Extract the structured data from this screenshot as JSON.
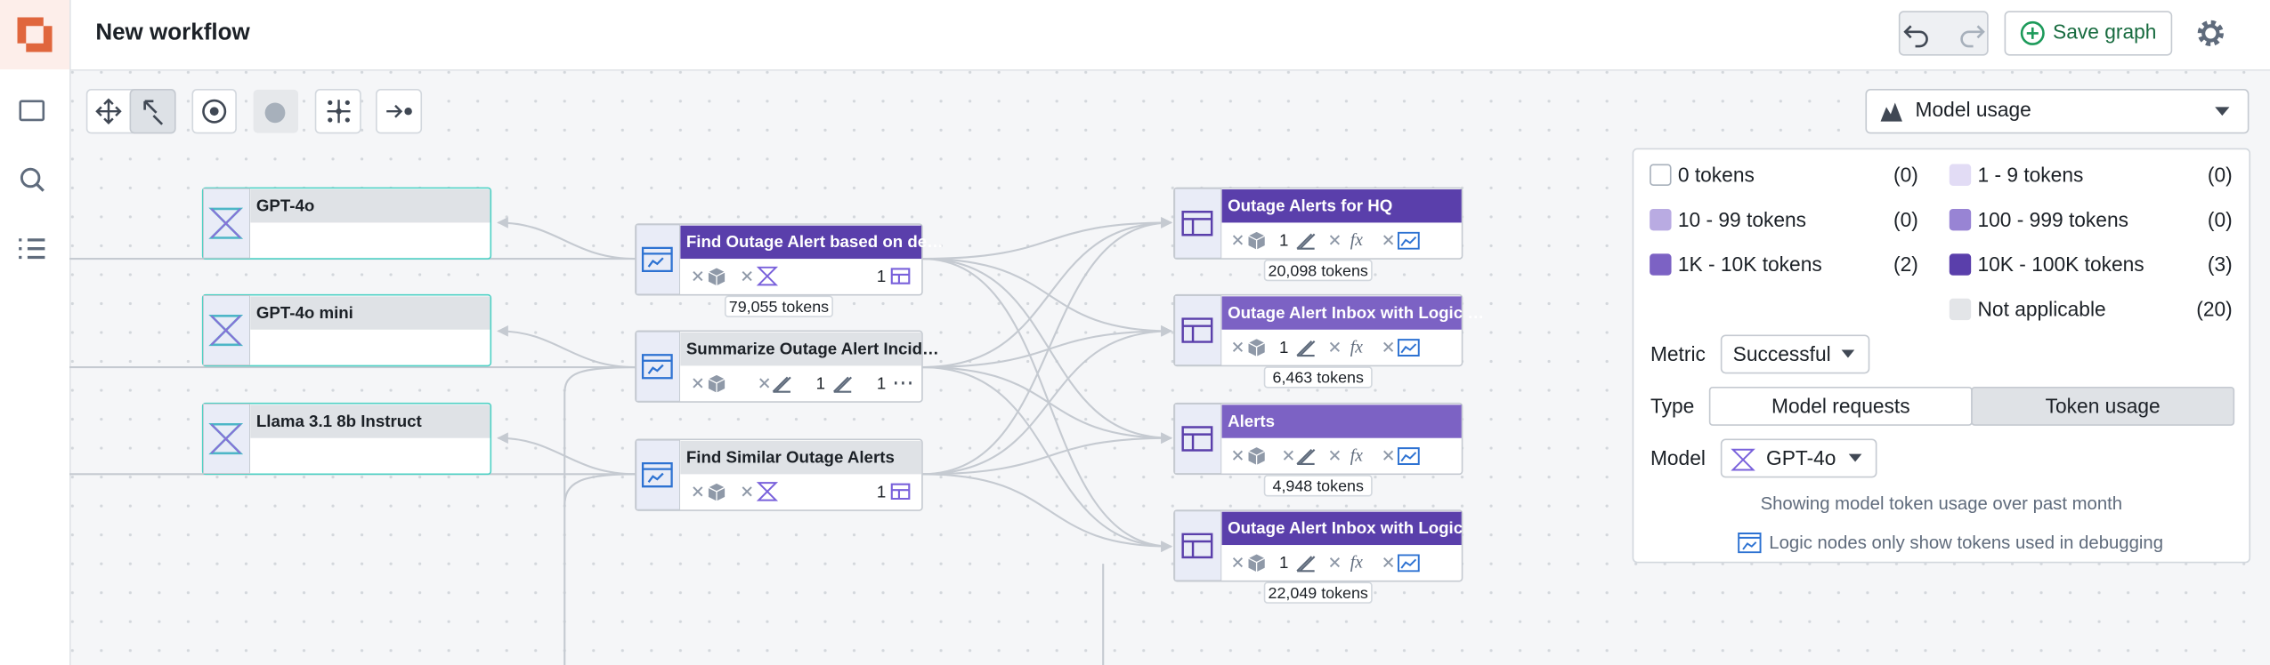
{
  "header": {
    "title": "New workflow",
    "save": "Save graph"
  },
  "nodes": [
    {
      "label": "GPT-4o"
    },
    {
      "label": "GPT-4o mini"
    },
    {
      "label": "Llama 3.1 8b Instruct"
    },
    {
      "label": "Find Outage Alert based on de…",
      "counts": [
        "1"
      ],
      "tokens": "79,055 tokens"
    },
    {
      "label": "Summarize Outage Alert Incid…",
      "counts": [
        "1",
        "1"
      ]
    },
    {
      "label": "Find Similar Outage Alerts",
      "counts": [
        "1"
      ]
    },
    {
      "label": "Outage Alerts for HQ",
      "counts": [
        "1"
      ],
      "function": "fx",
      "tokens": "20,098 tokens"
    },
    {
      "label": "Outage Alert Inbox with Logic …",
      "counts": [
        "1"
      ],
      "function": "fx",
      "tokens": "6,463 tokens"
    },
    {
      "label": "Alerts",
      "function": "fx",
      "tokens": "4,948 tokens"
    },
    {
      "label": "Outage Alert Inbox with Logic",
      "counts": [
        "1"
      ],
      "function": "fx",
      "tokens": "22,049 tokens"
    }
  ],
  "panel": {
    "dropdown": "Model usage",
    "legend": [
      {
        "label": "0 tokens",
        "count": "(0)",
        "color": "#ffffff"
      },
      {
        "label": "1 - 9 tokens",
        "count": "(0)",
        "color": "#e2dcf5"
      },
      {
        "label": "10 - 99 tokens",
        "count": "(0)",
        "color": "#b9abe2"
      },
      {
        "label": "100 - 999 tokens",
        "count": "(0)",
        "color": "#9884d4"
      },
      {
        "label": "1K - 10K tokens",
        "count": "(2)",
        "color": "#7c62c4"
      },
      {
        "label": "10K - 100K tokens",
        "count": "(3)",
        "color": "#5a3fab"
      },
      {
        "label": "Not applicable",
        "count": "(20)",
        "color": "#e3e5e8"
      }
    ],
    "metric_label": "Metric",
    "metric": "Successful",
    "type_label": "Type",
    "type_options": [
      "Model requests",
      "Token usage"
    ],
    "model_label": "Model",
    "model": "GPT-4o",
    "note": "Showing model token usage over past month",
    "footnote": "Logic nodes only show tokens used in debugging"
  }
}
